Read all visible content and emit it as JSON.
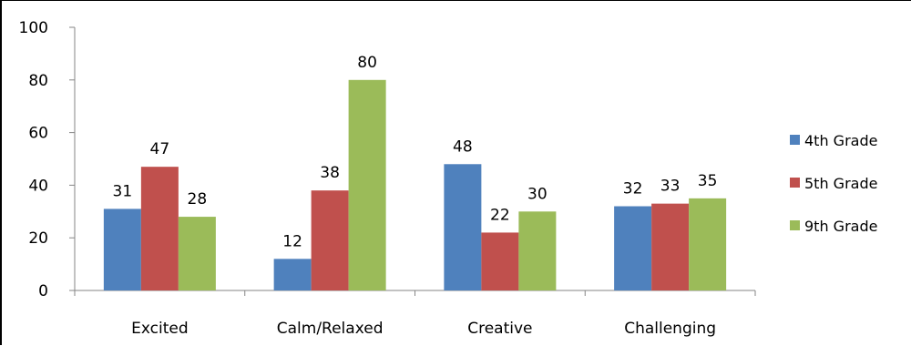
{
  "chart_data": {
    "type": "bar",
    "title": "",
    "xlabel": "",
    "ylabel": "",
    "categories": [
      "Excited",
      "Calm/Relaxed",
      "Creative",
      "Challenging"
    ],
    "series": [
      {
        "name": "4th Grade",
        "values": [
          31,
          12,
          48,
          32
        ],
        "color": "#4F81BD"
      },
      {
        "name": "5th Grade",
        "values": [
          47,
          38,
          22,
          33
        ],
        "color": "#C0504D"
      },
      {
        "name": "9th Grade",
        "values": [
          28,
          80,
          30,
          35
        ],
        "color": "#9BBB59"
      }
    ],
    "ylim": [
      0,
      100
    ],
    "yticks": [
      0,
      20,
      40,
      60,
      80,
      100
    ],
    "grid": false,
    "legend_position": "right",
    "data_labels": true
  }
}
